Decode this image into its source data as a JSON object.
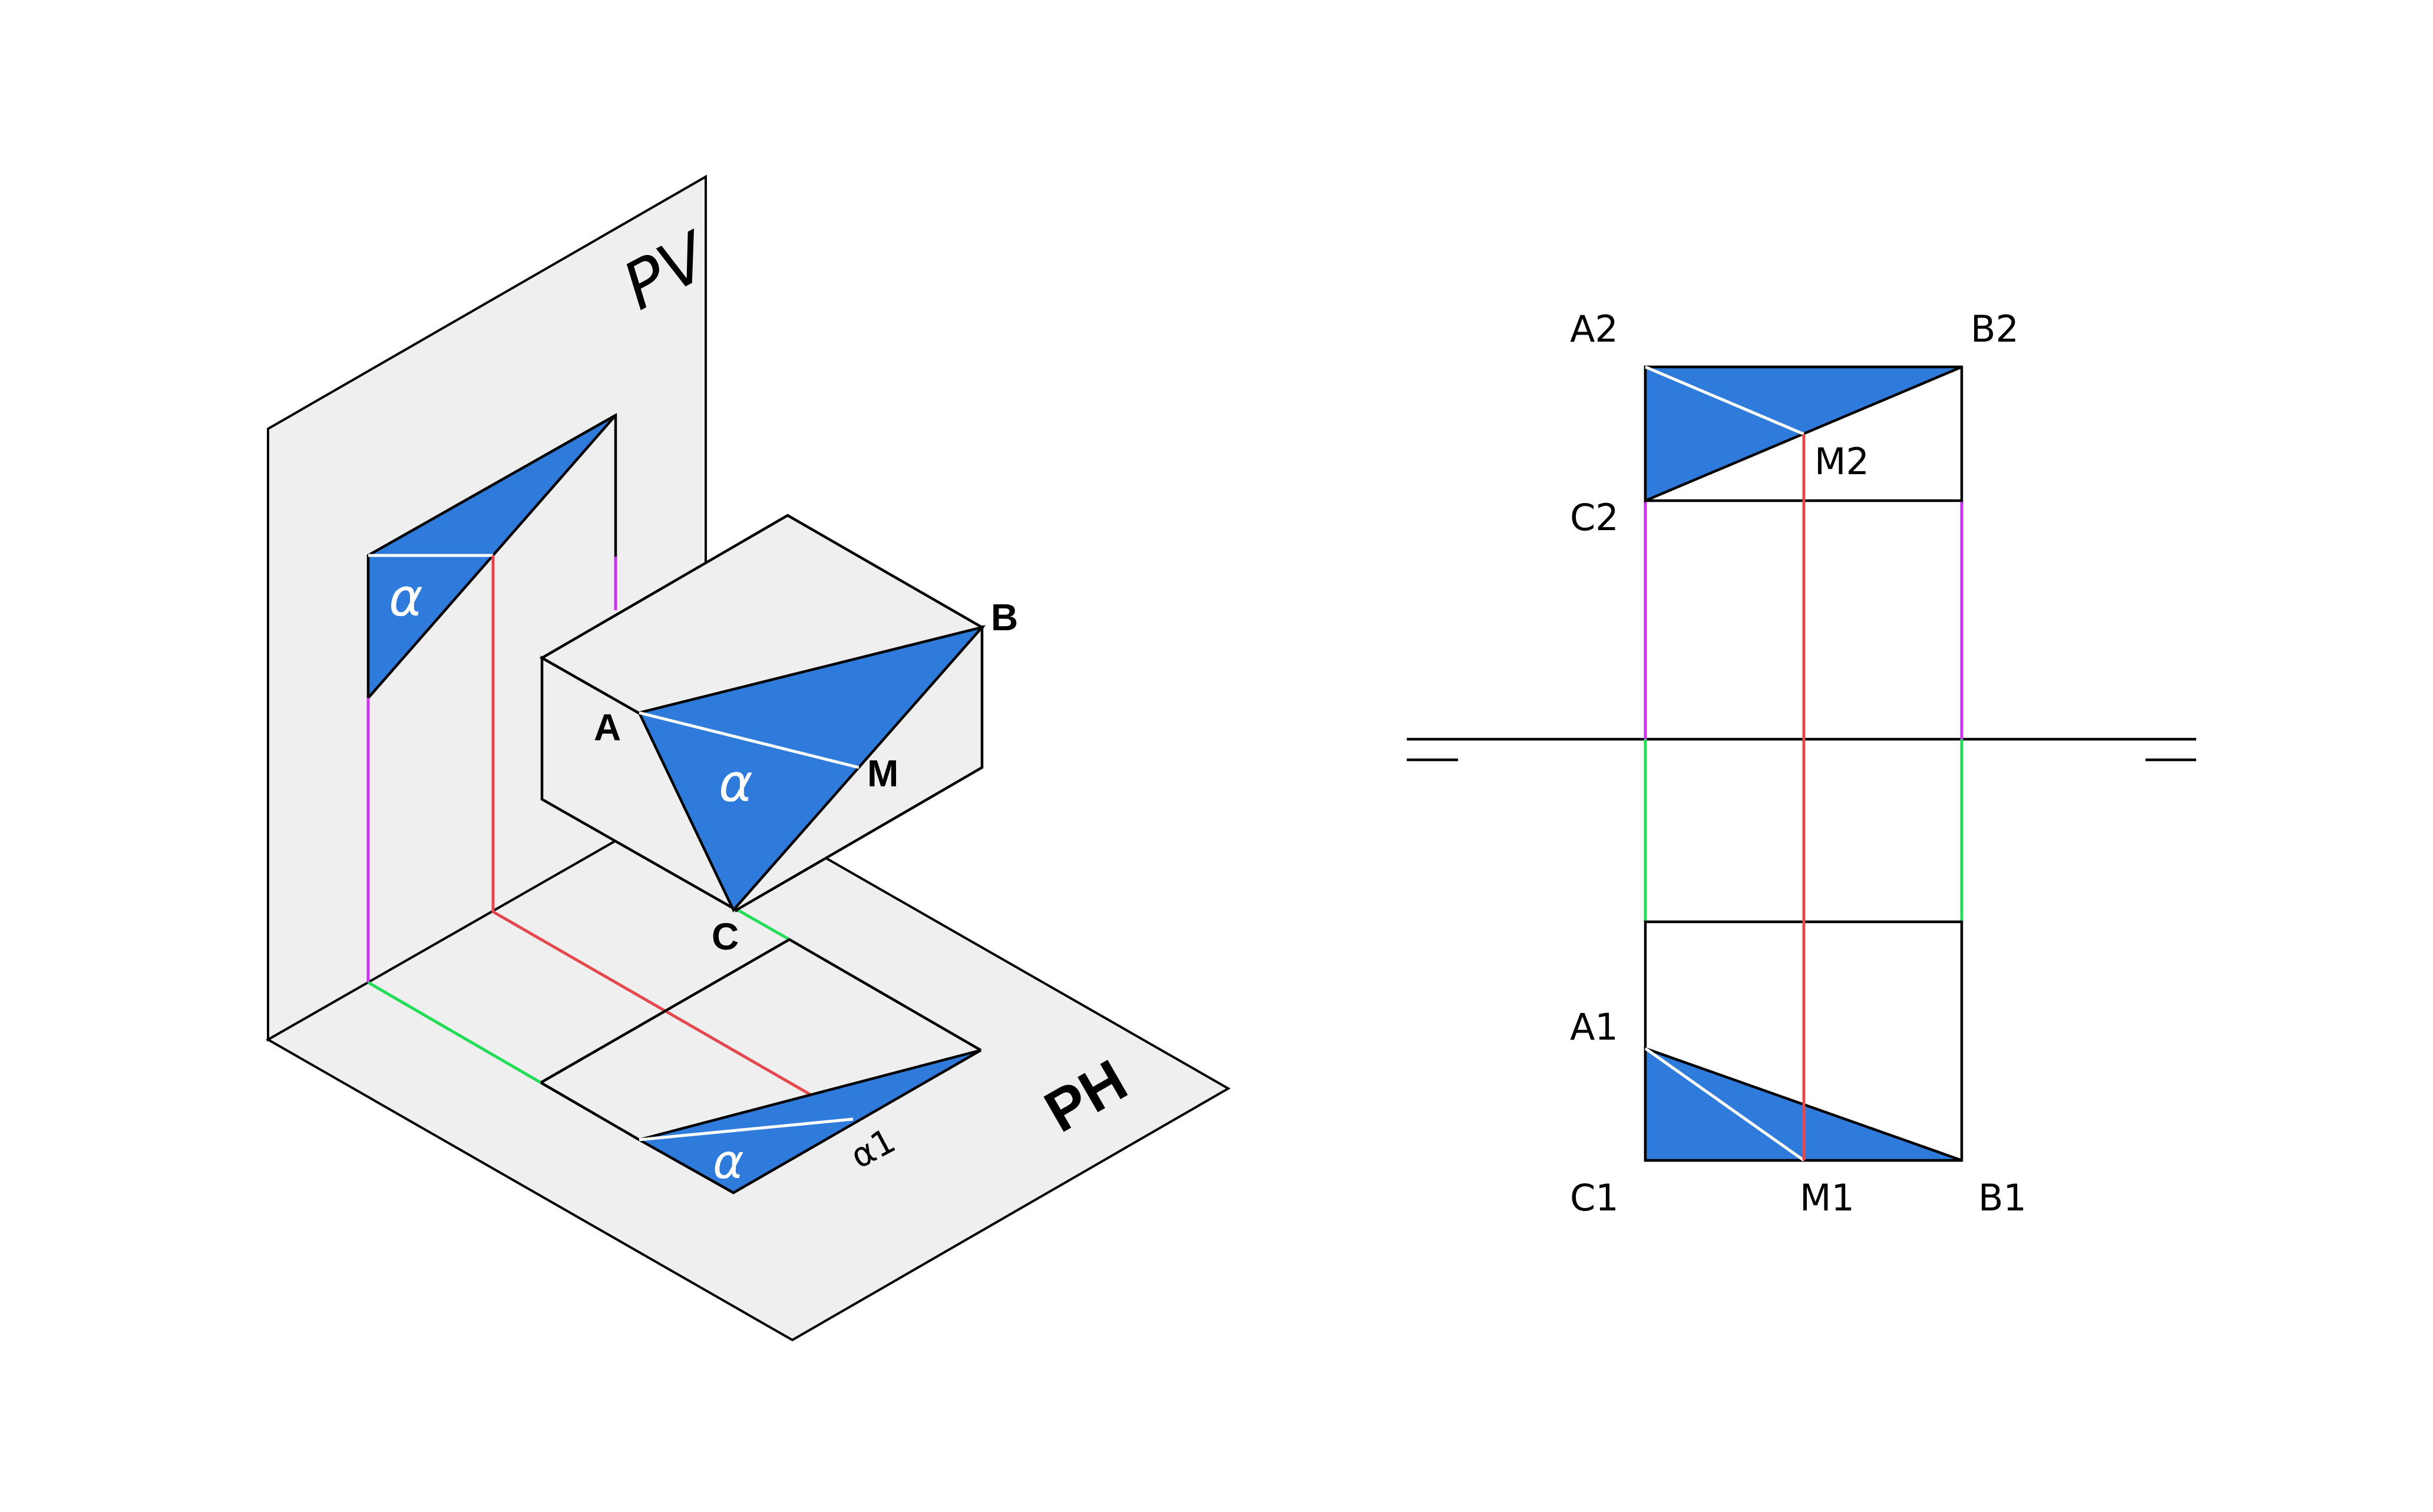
{
  "colors": {
    "triangle_fill": "#2f7bdc",
    "plane_fill": "#efefef",
    "projection_red": "#e5484d",
    "projection_green": "#22dd55",
    "projection_magenta": "#cc33ee",
    "edge": "#000000",
    "inner_line": "#ffffff"
  },
  "isometric_view": {
    "plane_vertical_label": "PV",
    "plane_horizontal_label": "PH",
    "point_a": "A",
    "point_b": "B",
    "point_c": "C",
    "point_m": "M",
    "alpha_box": "α",
    "alpha_vertical": "α",
    "alpha_horizontal": "α",
    "alpha_horizontal_trace": "α1"
  },
  "orthographic_view": {
    "a2": "A2",
    "b2": "B2",
    "c2": "C2",
    "m2": "M2",
    "a1": "A1",
    "b1": "B1",
    "c1": "C1",
    "m1": "M1"
  }
}
